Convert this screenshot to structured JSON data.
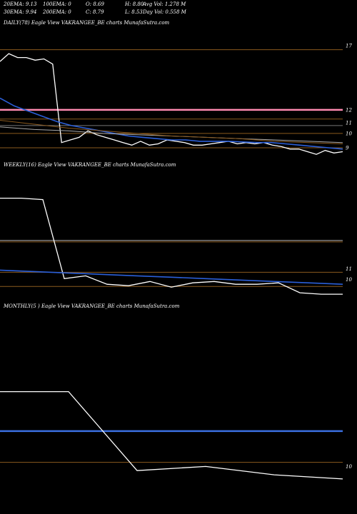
{
  "header": {
    "row1": [
      "20EMA: 9.13",
      "100EMA: 0",
      "O: 8.69",
      "H: 8.80",
      "Avg Vol: 1.278  M"
    ],
    "row2": [
      "30EMA: 9.94",
      "200EMA: 0",
      "C: 8.79",
      "L: 8.53",
      "Day Vol: 0.558  M"
    ]
  },
  "chart_data": [
    {
      "type": "line",
      "title": "DAILY(78) Eagle  View  VAKRANGEE_BE charts MunafaSutra.com",
      "ylim": [
        8.5,
        18.0
      ],
      "y_ticks": [
        "17",
        "12",
        "11",
        "10",
        "9"
      ],
      "y_tick_values": [
        16.9,
        12.0,
        11.0,
        10.2,
        9.1
      ],
      "hlines": [
        {
          "value": 16.6,
          "color": "#8a5a1e"
        },
        {
          "value": 12.0,
          "color": "#ff8ab0"
        },
        {
          "value": 11.3,
          "color": "#8a5a1e"
        },
        {
          "value": 10.8,
          "color": "#777777"
        },
        {
          "value": 10.2,
          "color": "#8a5a1e"
        },
        {
          "value": 9.1,
          "color": "#8a5a1e"
        }
      ],
      "series": [
        {
          "color": "#ffffff",
          "values": [
            15.7,
            16.3,
            16.0,
            16.0,
            15.8,
            15.9,
            15.5,
            9.5,
            9.7,
            9.9,
            10.4,
            10.1,
            9.9,
            9.7,
            9.5,
            9.3,
            9.6,
            9.3,
            9.4,
            9.7,
            9.6,
            9.5,
            9.3,
            9.3,
            9.4,
            9.5,
            9.6,
            9.4,
            9.5,
            9.4,
            9.5,
            9.3,
            9.2,
            9.0,
            9.0,
            8.8,
            8.6,
            8.9,
            8.7,
            8.8
          ]
        },
        {
          "color": "#2b5fd9",
          "values": [
            12.9,
            12.3,
            11.9,
            11.5,
            11.1,
            10.8,
            10.6,
            10.4,
            10.2,
            10.0,
            9.9,
            9.8,
            9.7,
            9.7,
            9.6,
            9.6,
            9.6,
            9.55,
            9.5,
            9.5,
            9.4,
            9.3,
            9.2,
            9.1,
            9.0
          ]
        },
        {
          "color": "#aaaaaa",
          "values": [
            10.7,
            10.5,
            10.4,
            10.2,
            10.1,
            10.0,
            9.9,
            9.8,
            9.7,
            9.6,
            9.5
          ]
        },
        {
          "color": "#8a5a1e",
          "values": [
            11.2,
            10.9,
            10.6,
            10.4,
            10.2,
            10.0,
            9.9,
            9.8,
            9.6,
            9.5,
            9.4
          ]
        }
      ]
    },
    {
      "type": "line",
      "title": "WEEKLY(16) Eagle  View  VAKRANGEE_BE charts MunafaSutra.com",
      "ylim": [
        8.5,
        17.5
      ],
      "y_ticks": [
        "11",
        "10"
      ],
      "y_tick_values": [
        10.6,
        9.85
      ],
      "hlines": [
        {
          "value": 12.6,
          "color": "#bbbbbb"
        },
        {
          "value": 12.5,
          "color": "#8a5a1e"
        },
        {
          "value": 10.35,
          "color": "#8a5a1e"
        },
        {
          "value": 9.35,
          "color": "#8a5a1e"
        }
      ],
      "series": [
        {
          "color": "#ffffff",
          "values": [
            15.6,
            15.6,
            15.5,
            9.9,
            10.1,
            9.5,
            9.4,
            9.7,
            9.3,
            9.6,
            9.7,
            9.5,
            9.5,
            9.6,
            8.9,
            8.8,
            8.8
          ]
        },
        {
          "color": "#2b5fd9",
          "values": [
            10.5,
            10.4,
            10.3,
            10.2,
            10.1,
            10.0,
            9.9,
            9.8,
            9.7,
            9.6,
            9.5
          ]
        }
      ]
    },
    {
      "type": "line",
      "title": "MONTHLY(5                          ) Eagle  View  VAKRANGEE_BE charts MunafaSutra.com",
      "ylim": [
        8.0,
        17.0
      ],
      "y_ticks": [
        "10"
      ],
      "y_tick_values": [
        9.6
      ],
      "hlines": [
        {
          "value": 11.3,
          "color": "#3a6fe0"
        },
        {
          "value": 9.8,
          "color": "#8a5a1e"
        }
      ],
      "series": [
        {
          "color": "#ffffff",
          "values": [
            13.2,
            13.2,
            9.4,
            9.6,
            9.2,
            9.0
          ]
        }
      ]
    }
  ]
}
